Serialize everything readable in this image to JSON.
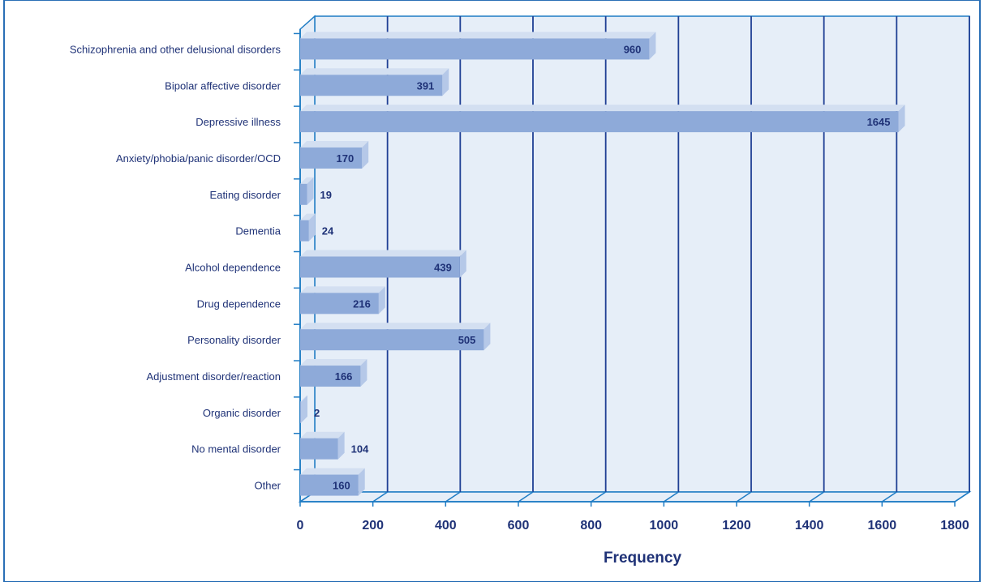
{
  "chart_data": {
    "type": "bar",
    "orientation": "horizontal",
    "categories": [
      "Schizophrenia and other delusional disorders",
      "Bipolar affective disorder",
      "Depressive illness",
      "Anxiety/phobia/panic disorder/OCD",
      "Eating disorder",
      "Dementia",
      "Alcohol dependence",
      "Drug dependence",
      "Personality disorder",
      "Adjustment disorder/reaction",
      "Organic disorder",
      "No mental disorder",
      "Other"
    ],
    "values": [
      960,
      391,
      1645,
      170,
      19,
      24,
      439,
      216,
      505,
      166,
      2,
      104,
      160
    ],
    "data_labels": [
      "960",
      "391",
      "1645",
      "170",
      "19",
      "24",
      "439",
      "216",
      "505",
      "166",
      "2",
      "104",
      "160"
    ],
    "xlabel": "Frequency",
    "ylabel": "",
    "xlim": [
      0,
      1800
    ],
    "xticks": [
      0,
      200,
      400,
      600,
      800,
      1000,
      1200,
      1400,
      1600,
      1800
    ],
    "xtick_labels": [
      "0",
      "200",
      "400",
      "600",
      "800",
      "1000",
      "1200",
      "1400",
      "1600",
      "1800"
    ],
    "grid": true,
    "legend": "none",
    "style": "3d",
    "colors": {
      "bar": "#8eaad9",
      "bar_top": "#d3dff1",
      "bar_side": "#b5c8e8",
      "plot_background": "#e6eef8",
      "grid": "#1f3f94",
      "axis": "#1f7cc4",
      "text": "#1f3277",
      "frame": "#2a6fb6"
    }
  }
}
